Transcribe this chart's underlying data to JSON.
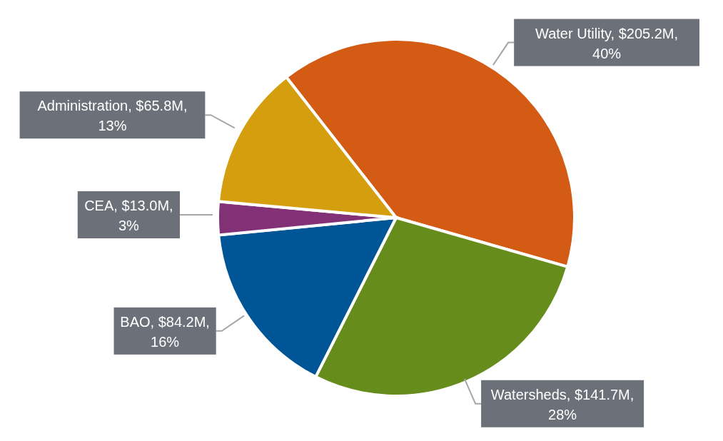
{
  "chart_data": {
    "type": "pie",
    "categories": [
      "Water Utility",
      "Watersheds",
      "BAO",
      "CEA",
      "Administration"
    ],
    "values": [
      40,
      28,
      16,
      3,
      13
    ],
    "colors": [
      "#d35b14",
      "#668c1c",
      "#005596",
      "#833177",
      "#d49e0e"
    ],
    "value_labels": [
      "$205.2M, 40%",
      "$141.7M, 28%",
      "$84.2M, 16%",
      "$13.0M, 3%",
      "$65.8M, 13%"
    ]
  }
}
